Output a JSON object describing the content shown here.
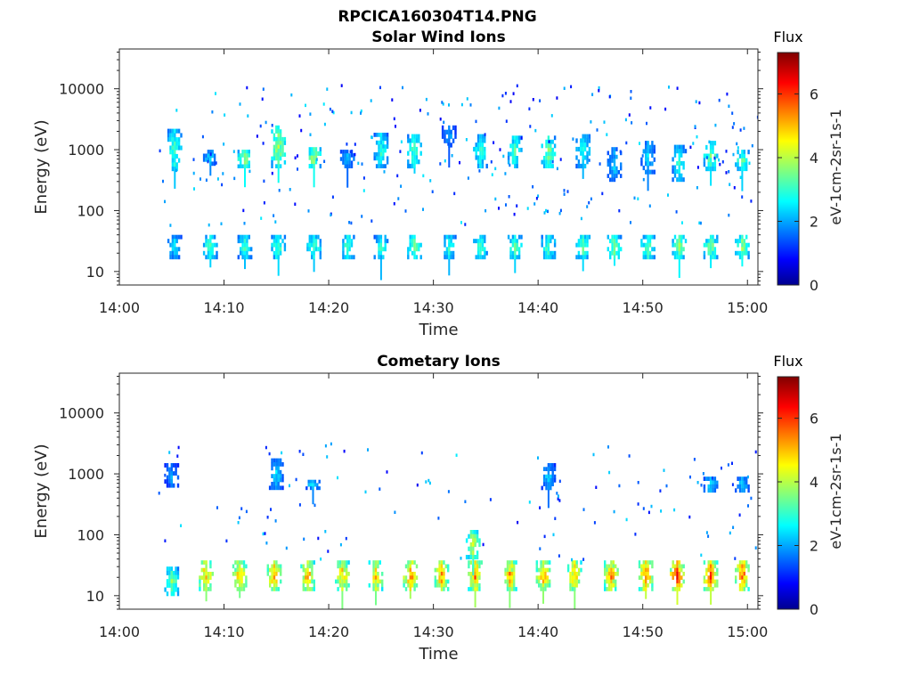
{
  "figure_title": "RPCICA160304T14.PNG",
  "chart_data": [
    {
      "type": "heatmap",
      "title": "Solar Wind Ions",
      "xlabel": "Time",
      "ylabel": "Energy (eV)",
      "x_ticks": [
        "14:00",
        "14:10",
        "14:20",
        "14:30",
        "14:40",
        "14:50",
        "15:00"
      ],
      "x_range": [
        "14:00",
        "15:01"
      ],
      "y_scale": "log",
      "y_ticks": [
        "10",
        "100",
        "1000",
        "10000"
      ],
      "y_range": [
        6,
        45000
      ],
      "colorbar": {
        "title": "Flux",
        "label": "eV-1cm-2sr-1s-1",
        "ticks": [
          "0",
          "2",
          "4",
          "6"
        ],
        "range": [
          0,
          7.3
        ],
        "colormap": "jet"
      },
      "bursts": [
        {
          "t": 5.3,
          "e_min": 450,
          "e_max": 2200,
          "flux": 3.2
        },
        {
          "t": 8.7,
          "e_min": 550,
          "e_max": 1000,
          "flux": 2.5
        },
        {
          "t": 12.0,
          "e_min": 500,
          "e_max": 1000,
          "flux": 3.8
        },
        {
          "t": 15.2,
          "e_min": 500,
          "e_max": 2500,
          "flux": 3.9
        },
        {
          "t": 18.6,
          "e_min": 500,
          "e_max": 1100,
          "flux": 3.9
        },
        {
          "t": 21.8,
          "e_min": 500,
          "e_max": 1000,
          "flux": 2.2
        },
        {
          "t": 25.0,
          "e_min": 500,
          "e_max": 1900,
          "flux": 3.0
        },
        {
          "t": 28.2,
          "e_min": 500,
          "e_max": 1800,
          "flux": 3.3
        },
        {
          "t": 31.5,
          "e_min": 1100,
          "e_max": 2500,
          "flux": 2.0
        },
        {
          "t": 34.5,
          "e_min": 500,
          "e_max": 1800,
          "flux": 3.0
        },
        {
          "t": 37.8,
          "e_min": 500,
          "e_max": 1700,
          "flux": 3.2
        },
        {
          "t": 41.0,
          "e_min": 500,
          "e_max": 1700,
          "flux": 3.6
        },
        {
          "t": 44.3,
          "e_min": 500,
          "e_max": 1800,
          "flux": 3.0
        },
        {
          "t": 47.3,
          "e_min": 300,
          "e_max": 1100,
          "flux": 2.3
        },
        {
          "t": 50.5,
          "e_min": 400,
          "e_max": 1400,
          "flux": 2.5
        },
        {
          "t": 53.5,
          "e_min": 300,
          "e_max": 1200,
          "flux": 2.8
        },
        {
          "t": 56.5,
          "e_min": 450,
          "e_max": 1400,
          "flux": 3.5
        },
        {
          "t": 59.5,
          "e_min": 450,
          "e_max": 1000,
          "flux": 3.3
        },
        {
          "t": 5.3,
          "e_min": 16,
          "e_max": 40,
          "flux": 2.6
        },
        {
          "t": 8.7,
          "e_min": 16,
          "e_max": 40,
          "flux": 3.3
        },
        {
          "t": 12.0,
          "e_min": 16,
          "e_max": 40,
          "flux": 3.1
        },
        {
          "t": 15.2,
          "e_min": 16,
          "e_max": 40,
          "flux": 3.4
        },
        {
          "t": 18.6,
          "e_min": 16,
          "e_max": 40,
          "flux": 3.2
        },
        {
          "t": 21.8,
          "e_min": 16,
          "e_max": 40,
          "flux": 3.2
        },
        {
          "t": 25.0,
          "e_min": 16,
          "e_max": 40,
          "flux": 3.0
        },
        {
          "t": 28.2,
          "e_min": 16,
          "e_max": 40,
          "flux": 3.4
        },
        {
          "t": 31.5,
          "e_min": 16,
          "e_max": 40,
          "flux": 3.0
        },
        {
          "t": 34.5,
          "e_min": 16,
          "e_max": 40,
          "flux": 3.2
        },
        {
          "t": 37.8,
          "e_min": 16,
          "e_max": 40,
          "flux": 3.3
        },
        {
          "t": 41.0,
          "e_min": 16,
          "e_max": 40,
          "flux": 3.3
        },
        {
          "t": 44.3,
          "e_min": 16,
          "e_max": 40,
          "flux": 3.4
        },
        {
          "t": 47.3,
          "e_min": 16,
          "e_max": 40,
          "flux": 3.6
        },
        {
          "t": 50.5,
          "e_min": 16,
          "e_max": 40,
          "flux": 3.5
        },
        {
          "t": 53.5,
          "e_min": 16,
          "e_max": 40,
          "flux": 3.7
        },
        {
          "t": 56.5,
          "e_min": 16,
          "e_max": 40,
          "flux": 3.6
        },
        {
          "t": 59.5,
          "e_min": 16,
          "e_max": 40,
          "flux": 3.8
        }
      ]
    },
    {
      "type": "heatmap",
      "title": "Cometary Ions",
      "xlabel": "Time",
      "ylabel": "Energy (eV)",
      "x_ticks": [
        "14:00",
        "14:10",
        "14:20",
        "14:30",
        "14:40",
        "14:50",
        "15:00"
      ],
      "x_range": [
        "14:00",
        "15:01"
      ],
      "y_scale": "log",
      "y_ticks": [
        "10",
        "100",
        "1000",
        "10000"
      ],
      "y_range": [
        6,
        45000
      ],
      "colorbar": {
        "title": "Flux",
        "label": "eV-1cm-2sr-1s-1",
        "ticks": [
          "0",
          "2",
          "4",
          "6"
        ],
        "range": [
          0,
          7.3
        ],
        "colormap": "jet"
      },
      "bursts": [
        {
          "t": 5.0,
          "e_min": 10,
          "e_max": 30,
          "flux": 3.5
        },
        {
          "t": 8.3,
          "e_min": 12,
          "e_max": 38,
          "flux": 5.2
        },
        {
          "t": 11.5,
          "e_min": 12,
          "e_max": 38,
          "flux": 5.0
        },
        {
          "t": 14.8,
          "e_min": 12,
          "e_max": 38,
          "flux": 5.3
        },
        {
          "t": 18.0,
          "e_min": 12,
          "e_max": 38,
          "flux": 5.2
        },
        {
          "t": 21.3,
          "e_min": 12,
          "e_max": 38,
          "flux": 5.1
        },
        {
          "t": 24.5,
          "e_min": 12,
          "e_max": 38,
          "flux": 5.0
        },
        {
          "t": 27.8,
          "e_min": 12,
          "e_max": 38,
          "flux": 5.5
        },
        {
          "t": 30.8,
          "e_min": 12,
          "e_max": 38,
          "flux": 5.3
        },
        {
          "t": 34.0,
          "e_min": 12,
          "e_max": 38,
          "flux": 5.5
        },
        {
          "t": 37.3,
          "e_min": 12,
          "e_max": 38,
          "flux": 5.2
        },
        {
          "t": 40.5,
          "e_min": 12,
          "e_max": 38,
          "flux": 5.3
        },
        {
          "t": 43.5,
          "e_min": 12,
          "e_max": 38,
          "flux": 5.2
        },
        {
          "t": 47.0,
          "e_min": 12,
          "e_max": 38,
          "flux": 5.3
        },
        {
          "t": 50.3,
          "e_min": 12,
          "e_max": 38,
          "flux": 5.8
        },
        {
          "t": 53.3,
          "e_min": 12,
          "e_max": 38,
          "flux": 6.0
        },
        {
          "t": 56.5,
          "e_min": 12,
          "e_max": 38,
          "flux": 5.8
        },
        {
          "t": 59.5,
          "e_min": 12,
          "e_max": 38,
          "flux": 5.8
        },
        {
          "t": 33.8,
          "e_min": 40,
          "e_max": 120,
          "flux": 4.2
        },
        {
          "t": 5.0,
          "e_min": 600,
          "e_max": 1500,
          "flux": 2.0
        },
        {
          "t": 15.0,
          "e_min": 550,
          "e_max": 1800,
          "flux": 2.4
        },
        {
          "t": 18.5,
          "e_min": 550,
          "e_max": 800,
          "flux": 2.5
        },
        {
          "t": 41.0,
          "e_min": 550,
          "e_max": 1500,
          "flux": 2.3
        },
        {
          "t": 56.5,
          "e_min": 500,
          "e_max": 900,
          "flux": 2.6
        },
        {
          "t": 59.5,
          "e_min": 500,
          "e_max": 900,
          "flux": 2.4
        }
      ]
    }
  ]
}
